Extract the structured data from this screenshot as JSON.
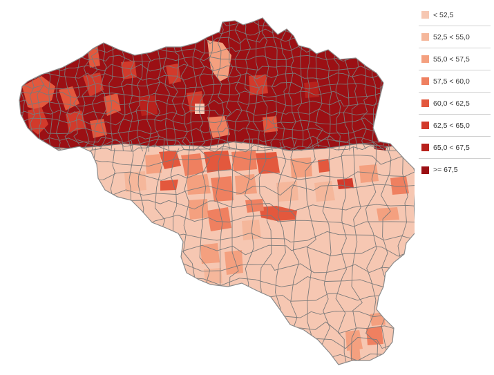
{
  "map": {
    "region": "Belgium municipalities",
    "border_color": "#7a7a7a",
    "colors": {
      "lt_52_5": "#f6c7b2",
      "52_5_55_0": "#f5b79b",
      "55_0_57_5": "#f4a07f",
      "57_5_60_0": "#ef8060",
      "60_0_62_5": "#e3583d",
      "62_5_65_0": "#d23a2b",
      "65_0_67_5": "#b8211c",
      "ge_67_5": "#9b1014"
    }
  },
  "legend": {
    "items": [
      {
        "label": "< 52,5",
        "color": "#f6c7b2"
      },
      {
        "label": "52,5 < 55,0",
        "color": "#f5b79b"
      },
      {
        "label": "55,0 < 57,5",
        "color": "#f4a07f"
      },
      {
        "label": "57,5 < 60,0",
        "color": "#ef8060"
      },
      {
        "label": "60,0 < 62,5",
        "color": "#e3583d"
      },
      {
        "label": "62,5 < 65,0",
        "color": "#d23a2b"
      },
      {
        "label": "65,0 < 67,5",
        "color": "#b8211c"
      },
      {
        "label": ">= 67,5",
        "color": "#9b1014"
      }
    ]
  }
}
